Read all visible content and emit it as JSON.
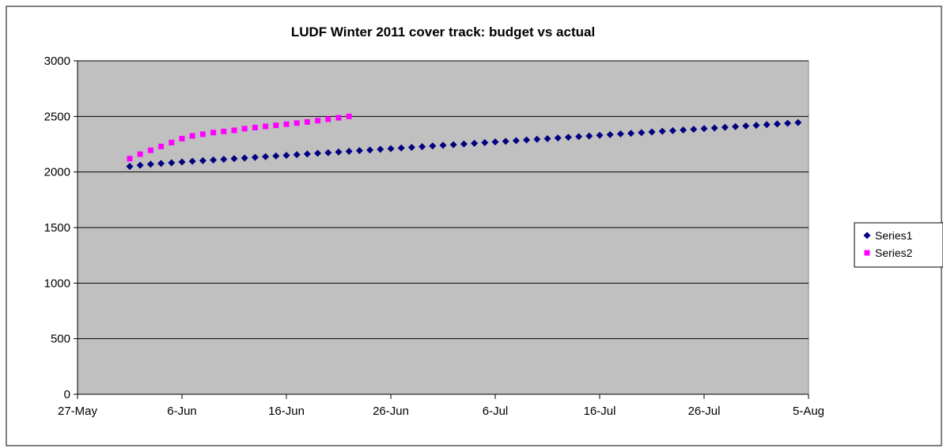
{
  "chart_data": {
    "type": "scatter",
    "title": "LUDF Winter 2011  cover track: budget vs actual",
    "xlabel": "",
    "ylabel": "",
    "xlim": [
      "2011-05-27",
      "2011-08-05"
    ],
    "ylim": [
      0,
      3000
    ],
    "x_ticks": [
      "27-May",
      "6-Jun",
      "16-Jun",
      "26-Jun",
      "6-Jul",
      "16-Jul",
      "26-Jul",
      "5-Aug"
    ],
    "y_ticks": [
      "0",
      "500",
      "1000",
      "1500",
      "2000",
      "2500",
      "3000"
    ],
    "grid": "horizontal",
    "plot_background": "#C0C0C0",
    "legend_position": "right",
    "series": [
      {
        "name": "Series1",
        "color": "#000080",
        "marker": "diamond",
        "x_start": "2011-06-01",
        "x_step_days": 1,
        "values": [
          2050,
          2061,
          2070,
          2077,
          2083,
          2090,
          2096,
          2102,
          2108,
          2114,
          2120,
          2126,
          2132,
          2138,
          2144,
          2150,
          2156,
          2162,
          2168,
          2174,
          2180,
          2186,
          2192,
          2198,
          2204,
          2210,
          2216,
          2222,
          2228,
          2234,
          2240,
          2246,
          2252,
          2258,
          2264,
          2270,
          2276,
          2282,
          2288,
          2294,
          2300,
          2306,
          2312,
          2318,
          2324,
          2330,
          2336,
          2342,
          2348,
          2354,
          2360,
          2366,
          2372,
          2378,
          2384,
          2390,
          2396,
          2402,
          2408,
          2414,
          2420,
          2426,
          2432,
          2438,
          2445
        ]
      },
      {
        "name": "Series2",
        "color": "#FF00FF",
        "marker": "square",
        "x_start": "2011-06-01",
        "x_step_days": 1,
        "values": [
          2120,
          2160,
          2195,
          2230,
          2265,
          2300,
          2325,
          2340,
          2355,
          2365,
          2375,
          2390,
          2400,
          2410,
          2420,
          2430,
          2440,
          2450,
          2462,
          2475,
          2488,
          2500
        ]
      }
    ]
  }
}
